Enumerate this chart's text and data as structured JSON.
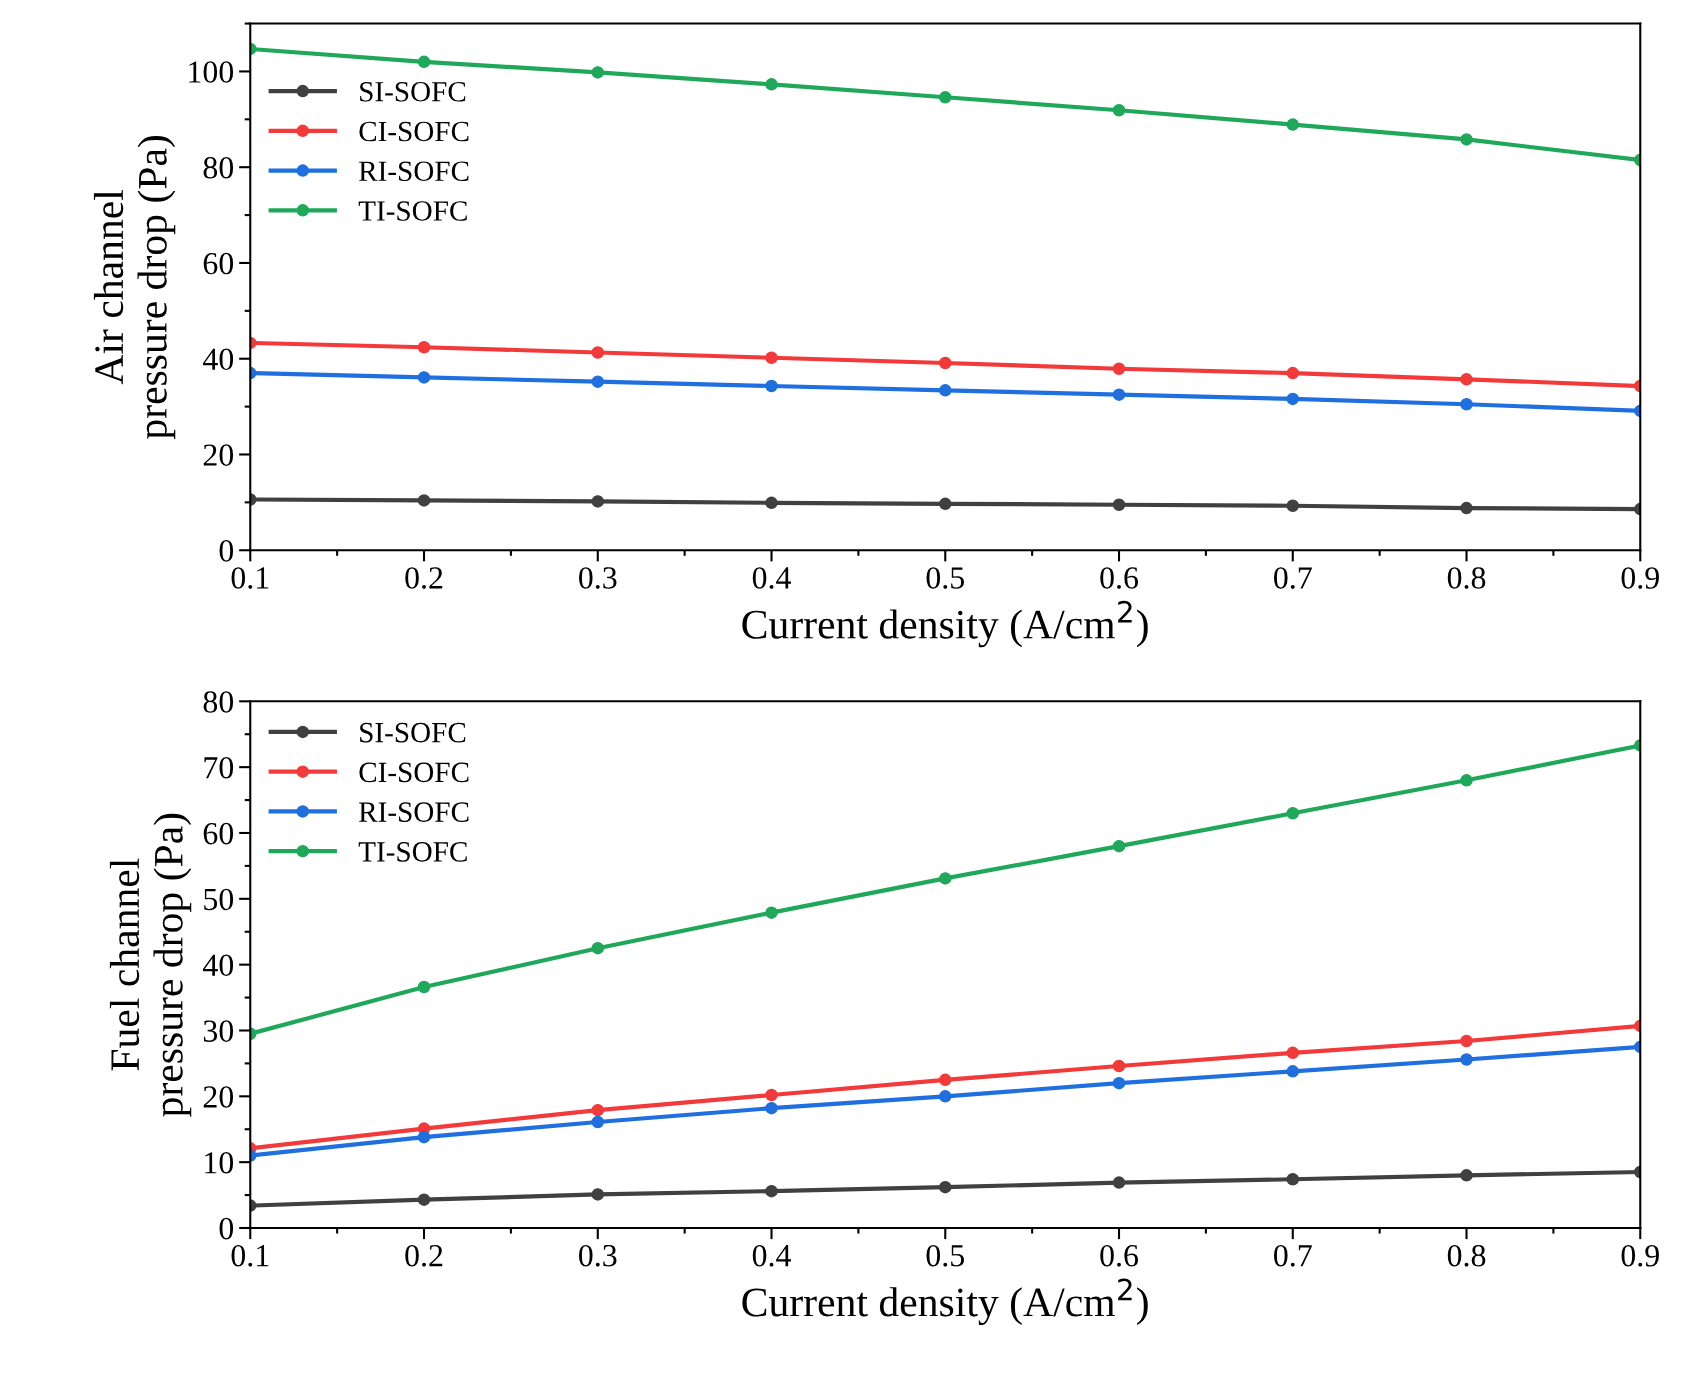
{
  "chart_data": [
    {
      "type": "line",
      "xlabel": "Current density (A/cm$^{2}$)",
      "ylabel": "Air channel\npressure drop (Pa)",
      "x": [
        0.1,
        0.2,
        0.3,
        0.4,
        0.5,
        0.6,
        0.7,
        0.8,
        0.9
      ],
      "series": [
        {
          "name": "SI-SOFC",
          "color": "#404040",
          "values": [
            10.6,
            10.4,
            10.2,
            9.9,
            9.7,
            9.5,
            9.3,
            8.8,
            8.6
          ]
        },
        {
          "name": "CI-SOFC",
          "color": "#f23a3a",
          "values": [
            43.3,
            42.4,
            41.3,
            40.2,
            39.1,
            37.9,
            37.0,
            35.7,
            34.3
          ]
        },
        {
          "name": "RI-SOFC",
          "color": "#1f6fdf",
          "values": [
            37.0,
            36.1,
            35.2,
            34.3,
            33.4,
            32.5,
            31.6,
            30.5,
            29.1
          ]
        },
        {
          "name": "TI-SOFC",
          "color": "#1fa85a",
          "values": [
            104.7,
            102.0,
            99.8,
            97.3,
            94.6,
            91.9,
            88.9,
            85.8,
            81.5
          ]
        }
      ],
      "xlim": [
        0.1,
        0.9
      ],
      "xticks": [
        0.1,
        0.2,
        0.3,
        0.4,
        0.5,
        0.6,
        0.7,
        0.8,
        0.9
      ],
      "ylim": [
        0,
        110
      ],
      "yticks": [
        0,
        20,
        40,
        60,
        80,
        100
      ],
      "legend": "top left",
      "marker": "circle",
      "line_style": "solid",
      "grid": false
    },
    {
      "type": "line",
      "xlabel": "Current density (A/cm$^{2}$)",
      "ylabel": "Fuel channel\npressure drop (Pa)",
      "x": [
        0.1,
        0.2,
        0.3,
        0.4,
        0.5,
        0.6,
        0.7,
        0.8,
        0.9
      ],
      "series": [
        {
          "name": "SI-SOFC",
          "color": "#404040",
          "values": [
            3.4,
            4.3,
            5.1,
            5.6,
            6.2,
            6.9,
            7.4,
            8.0,
            8.5
          ]
        },
        {
          "name": "CI-SOFC",
          "color": "#f23a3a",
          "values": [
            12.1,
            15.1,
            17.9,
            20.2,
            22.5,
            24.6,
            26.6,
            28.4,
            30.7
          ]
        },
        {
          "name": "RI-SOFC",
          "color": "#1f6fdf",
          "values": [
            11.0,
            13.8,
            16.1,
            18.2,
            20.0,
            22.0,
            23.8,
            25.6,
            27.5
          ]
        },
        {
          "name": "TI-SOFC",
          "color": "#1fa85a",
          "values": [
            29.5,
            36.6,
            42.5,
            47.9,
            53.1,
            58.0,
            63.0,
            68.0,
            73.3
          ]
        }
      ],
      "xlim": [
        0.1,
        0.9
      ],
      "xticks": [
        0.1,
        0.2,
        0.3,
        0.4,
        0.5,
        0.6,
        0.7,
        0.8,
        0.9
      ],
      "ylim": [
        0,
        80
      ],
      "yticks": [
        0,
        10,
        20,
        30,
        40,
        50,
        60,
        70,
        80
      ],
      "legend": "top left",
      "marker": "circle",
      "line_style": "solid",
      "grid": false
    }
  ]
}
